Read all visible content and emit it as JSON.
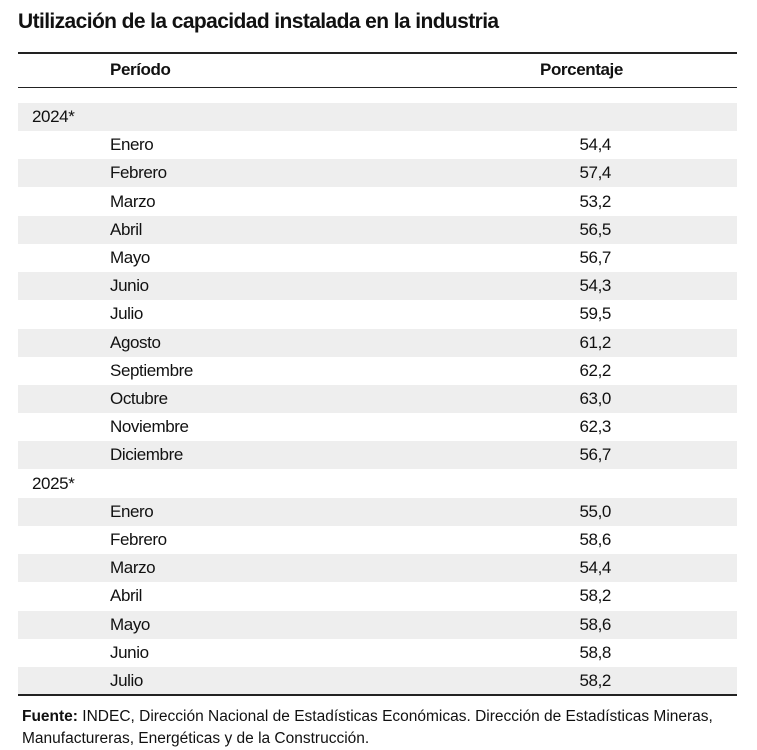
{
  "title": "Utilización de la capacidad instalada en la industria",
  "header": [
    "Período",
    "Porcentaje"
  ],
  "groups": [
    {
      "label": "2024*",
      "rows": [
        [
          "Enero",
          "54,4"
        ],
        [
          "Febrero",
          "57,4"
        ],
        [
          "Marzo",
          "53,2"
        ],
        [
          "Abril",
          "56,5"
        ],
        [
          "Mayo",
          "56,7"
        ],
        [
          "Junio",
          "54,3"
        ],
        [
          "Julio",
          "59,5"
        ],
        [
          "Agosto",
          "61,2"
        ],
        [
          "Septiembre",
          "62,2"
        ],
        [
          "Octubre",
          "63,0"
        ],
        [
          "Noviembre",
          "62,3"
        ],
        [
          "Diciembre",
          "56,7"
        ]
      ]
    },
    {
      "label": "2025*",
      "rows": [
        [
          "Enero",
          "55,0"
        ],
        [
          "Febrero",
          "58,6"
        ],
        [
          "Marzo",
          "54,4"
        ],
        [
          "Abril",
          "58,2"
        ],
        [
          "Mayo",
          "58,6"
        ],
        [
          "Junio",
          "58,8"
        ],
        [
          "Julio",
          "58,2"
        ]
      ]
    }
  ],
  "source": {
    "label": "Fuente:",
    "text": "INDEC, Dirección Nacional de Estadísticas Económicas. Dirección de Estadísticas Mineras, Manufactureras, Energéticas y de la Construcción."
  }
}
